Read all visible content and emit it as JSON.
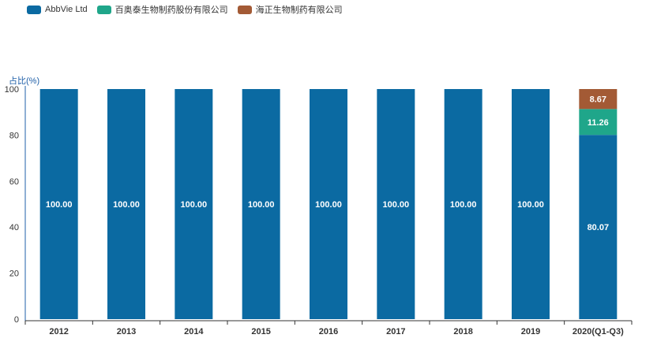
{
  "chart_data": {
    "type": "bar",
    "stacked": true,
    "categories": [
      "2012",
      "2013",
      "2014",
      "2015",
      "2016",
      "2017",
      "2018",
      "2019",
      "2020(Q1-Q3)"
    ],
    "series": [
      {
        "name": "AbbVie Ltd",
        "color": "#0b6aa2",
        "values": [
          100,
          100,
          100,
          100,
          100,
          100,
          100,
          100,
          80.07
        ]
      },
      {
        "name": "百奥泰生物制药股份有限公司",
        "color": "#1fa68a",
        "values": [
          0,
          0,
          0,
          0,
          0,
          0,
          0,
          0,
          11.26
        ]
      },
      {
        "name": "海正生物制药有限公司",
        "color": "#a35a35",
        "values": [
          0,
          0,
          0,
          0,
          0,
          0,
          0,
          0,
          8.67
        ]
      }
    ],
    "data_labels": [
      [
        "100.00",
        "100.00",
        "100.00",
        "100.00",
        "100.00",
        "100.00",
        "100.00",
        "100.00",
        "80.07"
      ],
      [
        "",
        "",
        "",
        "",
        "",
        "",
        "",
        "",
        "11.26"
      ],
      [
        "",
        "",
        "",
        "",
        "",
        "",
        "",
        "",
        "8.67"
      ]
    ],
    "ylabel": "占比(%)",
    "ylim": [
      0,
      100
    ],
    "yticks": [
      0,
      20,
      40,
      60,
      80,
      100
    ],
    "grid": false,
    "legend_position": "top-left"
  }
}
